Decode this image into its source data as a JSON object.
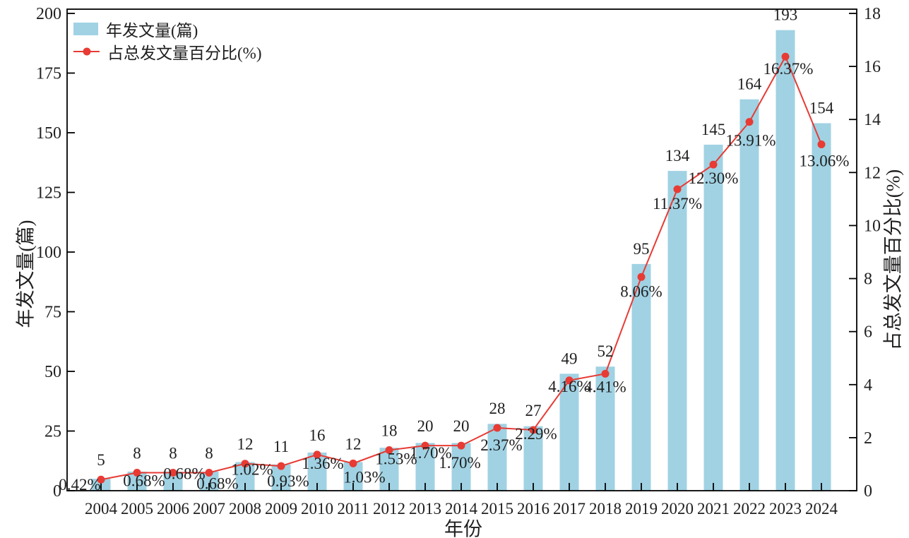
{
  "chart_data": {
    "type": "bar",
    "title": "",
    "categories": [
      "2004",
      "2005",
      "2006",
      "2007",
      "2008",
      "2009",
      "2010",
      "2011",
      "2012",
      "2013",
      "2014",
      "2015",
      "2016",
      "2017",
      "2018",
      "2019",
      "2020",
      "2021",
      "2022",
      "2023",
      "2024"
    ],
    "series": [
      {
        "name": "年发文量(篇)",
        "type": "bar",
        "axis": "left",
        "values": [
          5,
          8,
          8,
          8,
          12,
          11,
          16,
          12,
          18,
          20,
          20,
          28,
          27,
          49,
          52,
          95,
          134,
          145,
          164,
          193,
          154
        ]
      },
      {
        "name": "占总发文量百分比(%)",
        "type": "line",
        "axis": "right",
        "values": [
          0.42,
          0.68,
          0.68,
          0.68,
          1.02,
          0.93,
          1.36,
          1.03,
          1.53,
          1.7,
          1.7,
          2.37,
          2.29,
          4.16,
          4.41,
          8.06,
          11.37,
          12.3,
          13.91,
          16.37,
          13.06
        ],
        "point_labels": [
          "0.42%",
          "0.68%",
          "0.68%",
          "0.68%",
          "1.02%",
          "0.93%",
          "1.36%",
          "1.03%",
          "1.53%",
          "1.70%",
          "1.70%",
          "2.37%",
          "2.29%",
          "4.16%",
          "4.41%",
          "8.06%",
          "11.37%",
          "12.30%",
          "13.91%",
          "16.37%",
          "13.06%"
        ]
      }
    ],
    "xlabel": "年份",
    "ylabel_left": "年发文量(篇)",
    "ylabel_right": "占总发文量百分比(%)",
    "ylim_left": [
      0,
      200
    ],
    "yticks_left": [
      0,
      25,
      50,
      75,
      100,
      125,
      150,
      175,
      200
    ],
    "ylim_right": [
      0,
      18
    ],
    "yticks_right": [
      0,
      2,
      4,
      6,
      8,
      10,
      12,
      14,
      16,
      18
    ],
    "grid": false,
    "legend_position": "top-left",
    "colors": {
      "bar": "#A0D2E3",
      "line": "#E73B34",
      "text": "#1F1F1F",
      "axis": "#000000"
    }
  }
}
